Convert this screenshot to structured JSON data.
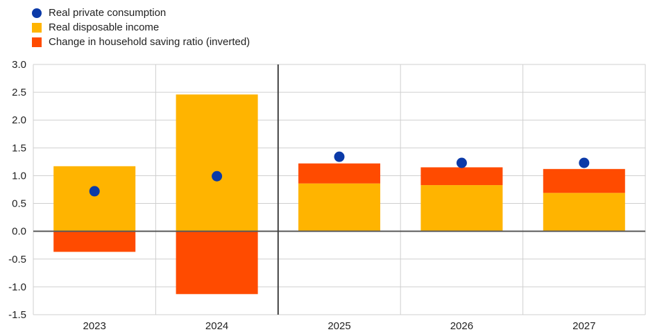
{
  "chart_data": {
    "type": "bar",
    "categories": [
      "2023",
      "2024",
      "2025",
      "2026",
      "2027"
    ],
    "series": [
      {
        "name": "Real private consumption",
        "kind": "scatter",
        "color": "#0B3AA8",
        "values": [
          0.72,
          0.99,
          1.34,
          1.23,
          1.23
        ]
      },
      {
        "name": "Real disposable income",
        "kind": "bar",
        "color": "#FFB400",
        "values": [
          1.17,
          2.46,
          0.86,
          0.83,
          0.69
        ]
      },
      {
        "name": "Change in household saving ratio (inverted)",
        "kind": "bar",
        "color": "#FF4B00",
        "values": [
          -0.37,
          -1.13,
          0.36,
          0.32,
          0.43
        ]
      }
    ],
    "ylim": [
      -1.5,
      3.0
    ],
    "yticks": [
      "3.0",
      "2.5",
      "2.0",
      "1.5",
      "1.0",
      "0.5",
      "0.0",
      "-0.5",
      "-1.0",
      "-1.5"
    ],
    "xlabel": "",
    "ylabel": "",
    "grid": true,
    "legend_position": "top-left",
    "stacked": true
  }
}
